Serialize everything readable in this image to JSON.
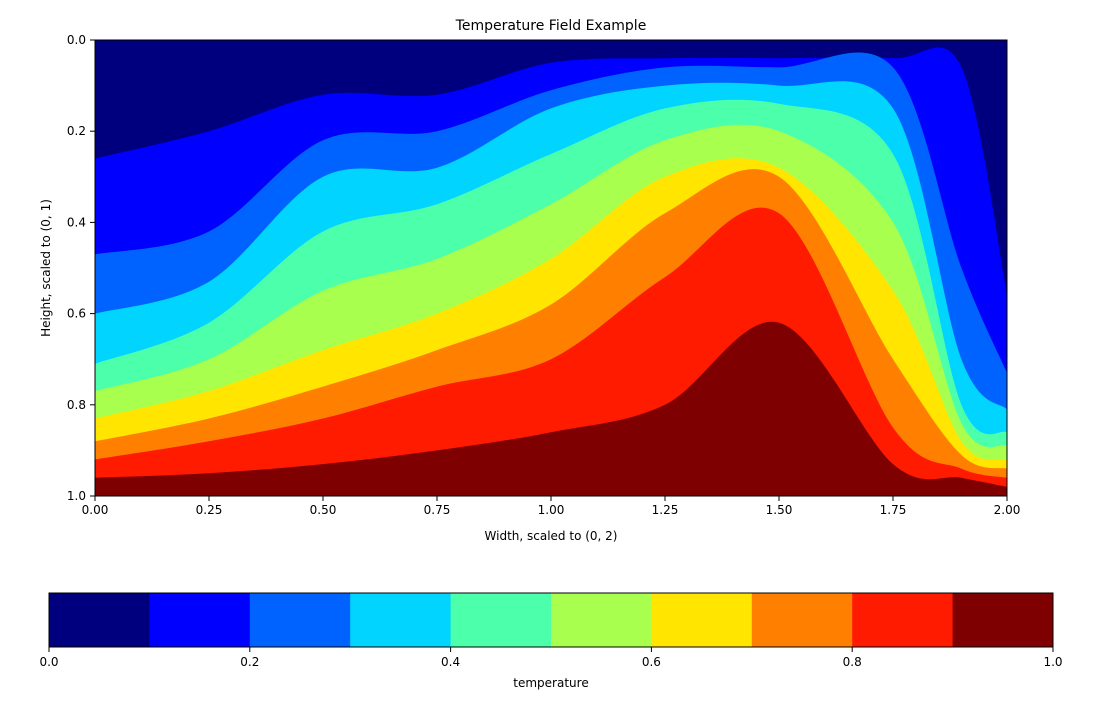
{
  "chart_data": {
    "type": "heatmap",
    "subtype": "filled-contour",
    "title": "Temperature Field Example",
    "xlabel": "Width, scaled to (0, 2)",
    "ylabel": "Height, scaled to (0, 1)",
    "xlim": [
      0,
      2
    ],
    "ylim": [
      1,
      0
    ],
    "y_inverted": true,
    "grid": false,
    "x_ticks": [
      0,
      0.25,
      0.5,
      0.75,
      1.0,
      1.25,
      1.5,
      1.75,
      2.0
    ],
    "x_tick_labels": [
      "0.00",
      "0.25",
      "0.50",
      "0.75",
      "1.00",
      "1.25",
      "1.50",
      "1.75",
      "2.00"
    ],
    "y_ticks": [
      0,
      0.2,
      0.4,
      0.6,
      0.8,
      1.0
    ],
    "y_tick_labels": [
      "0.0",
      "0.2",
      "0.4",
      "0.6",
      "0.8",
      "1.0"
    ],
    "colorbar": {
      "label": "temperature",
      "orientation": "horizontal",
      "placement": "bottom",
      "levels": [
        0,
        0.1,
        0.2,
        0.3,
        0.4,
        0.5,
        0.6,
        0.7,
        0.8,
        0.9,
        1.0
      ],
      "tick_values": [
        0,
        0.2,
        0.4,
        0.6,
        0.8,
        1.0
      ],
      "tick_labels": [
        "0.0",
        "0.2",
        "0.4",
        "0.6",
        "0.8",
        "1.0"
      ],
      "colors": [
        "#00007f",
        "#0000fe",
        "#0063ff",
        "#00d4ff",
        "#4cffaa",
        "#a9ff4d",
        "#ffe500",
        "#ff8000",
        "#fe1b00",
        "#7f0000"
      ]
    },
    "contour_boundaries": [
      {
        "level": 0.1,
        "x": [
          0,
          0.25,
          0.5,
          0.75,
          1.0,
          1.25,
          1.5,
          1.75,
          1.9,
          2.0
        ],
        "y": [
          0.26,
          0.2,
          0.12,
          0.12,
          0.05,
          0.04,
          0.04,
          0.04,
          0.06,
          0.56
        ]
      },
      {
        "level": 0.2,
        "x": [
          0,
          0.25,
          0.5,
          0.75,
          1.0,
          1.25,
          1.5,
          1.75,
          1.9,
          2.0
        ],
        "y": [
          0.47,
          0.42,
          0.22,
          0.2,
          0.11,
          0.06,
          0.06,
          0.06,
          0.5,
          0.73
        ]
      },
      {
        "level": 0.3,
        "x": [
          0,
          0.25,
          0.5,
          0.75,
          1.0,
          1.25,
          1.5,
          1.75,
          1.9,
          2.0
        ],
        "y": [
          0.6,
          0.53,
          0.3,
          0.28,
          0.15,
          0.1,
          0.1,
          0.15,
          0.7,
          0.81
        ]
      },
      {
        "level": 0.4,
        "x": [
          0,
          0.25,
          0.5,
          0.75,
          1.0,
          1.25,
          1.5,
          1.75,
          1.9,
          2.0
        ],
        "y": [
          0.71,
          0.62,
          0.42,
          0.36,
          0.25,
          0.15,
          0.14,
          0.25,
          0.8,
          0.86
        ]
      },
      {
        "level": 0.5,
        "x": [
          0,
          0.25,
          0.5,
          0.75,
          1.0,
          1.25,
          1.5,
          1.75,
          1.9,
          2.0
        ],
        "y": [
          0.77,
          0.7,
          0.55,
          0.48,
          0.36,
          0.22,
          0.2,
          0.4,
          0.84,
          0.89
        ]
      },
      {
        "level": 0.6,
        "x": [
          0,
          0.25,
          0.5,
          0.75,
          1.0,
          1.25,
          1.5,
          1.75,
          1.9,
          2.0
        ],
        "y": [
          0.83,
          0.77,
          0.68,
          0.6,
          0.48,
          0.3,
          0.28,
          0.55,
          0.88,
          0.92
        ]
      },
      {
        "level": 0.7,
        "x": [
          0,
          0.25,
          0.5,
          0.75,
          1.0,
          1.25,
          1.5,
          1.75,
          1.9,
          2.0
        ],
        "y": [
          0.88,
          0.83,
          0.76,
          0.68,
          0.58,
          0.38,
          0.3,
          0.7,
          0.91,
          0.94
        ]
      },
      {
        "level": 0.8,
        "x": [
          0,
          0.25,
          0.5,
          0.75,
          1.0,
          1.25,
          1.5,
          1.75,
          1.9,
          2.0
        ],
        "y": [
          0.92,
          0.88,
          0.83,
          0.76,
          0.7,
          0.52,
          0.38,
          0.85,
          0.94,
          0.96
        ]
      },
      {
        "level": 0.9,
        "x": [
          0,
          0.25,
          0.5,
          0.75,
          1.0,
          1.25,
          1.5,
          1.75,
          1.9,
          2.0
        ],
        "y": [
          0.96,
          0.95,
          0.93,
          0.9,
          0.86,
          0.8,
          0.62,
          0.93,
          0.96,
          0.98
        ]
      }
    ]
  }
}
